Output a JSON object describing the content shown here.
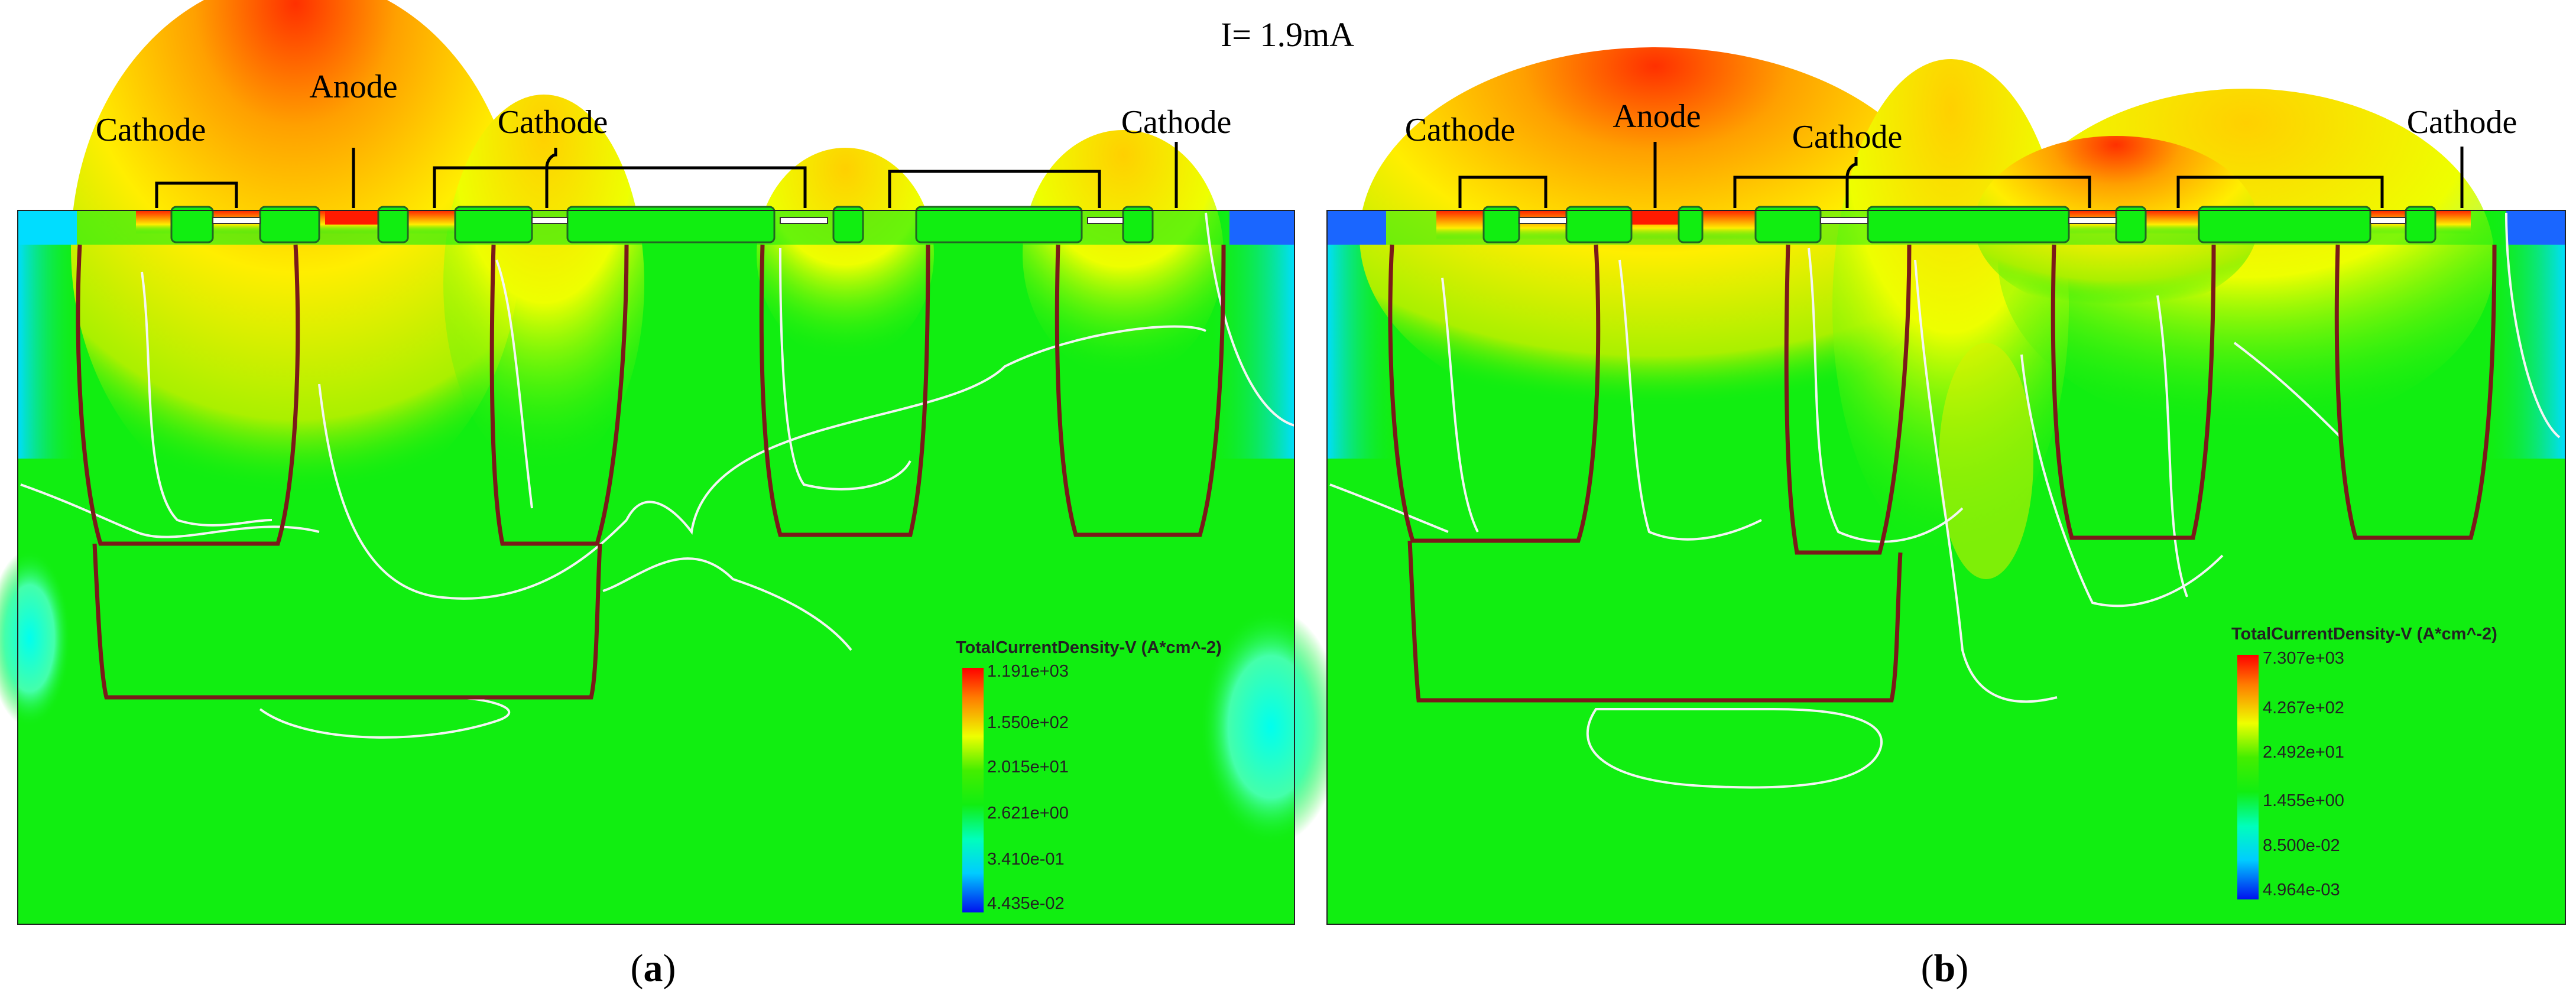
{
  "figure": {
    "title": "I= 1.9mA",
    "palette": {
      "background_green": "#11ee11",
      "contour_white": "#f4f4f4",
      "junction_dark_red": "#7a1a1a",
      "legend_red": "#ff0000",
      "legend_yellow": "#eeff00",
      "legend_cyan": "#00ffee",
      "legend_blue": "#0022ff"
    },
    "panels": [
      {
        "caption_prefix": "(",
        "caption_letter": "a",
        "caption_suffix": ")",
        "electrode_labels": [
          "Cathode",
          "Anode",
          "Cathode",
          "Cathode"
        ],
        "legend": {
          "title": "TotalCurrentDensity-V (A*cm^-2)",
          "ticks": [
            "1.191e+03",
            "1.550e+02",
            "2.015e+01",
            "2.621e+00",
            "3.410e-01",
            "4.435e-02"
          ]
        }
      },
      {
        "caption_prefix": "(",
        "caption_letter": "b",
        "caption_suffix": ")",
        "electrode_labels": [
          "Cathode",
          "Anode",
          "Cathode",
          "Cathode"
        ],
        "legend": {
          "title": "TotalCurrentDensity-V (A*cm^-2)",
          "ticks": [
            "7.307e+03",
            "4.267e+02",
            "2.492e+01",
            "1.455e+00",
            "8.500e-02",
            "4.964e-03"
          ]
        }
      }
    ]
  }
}
